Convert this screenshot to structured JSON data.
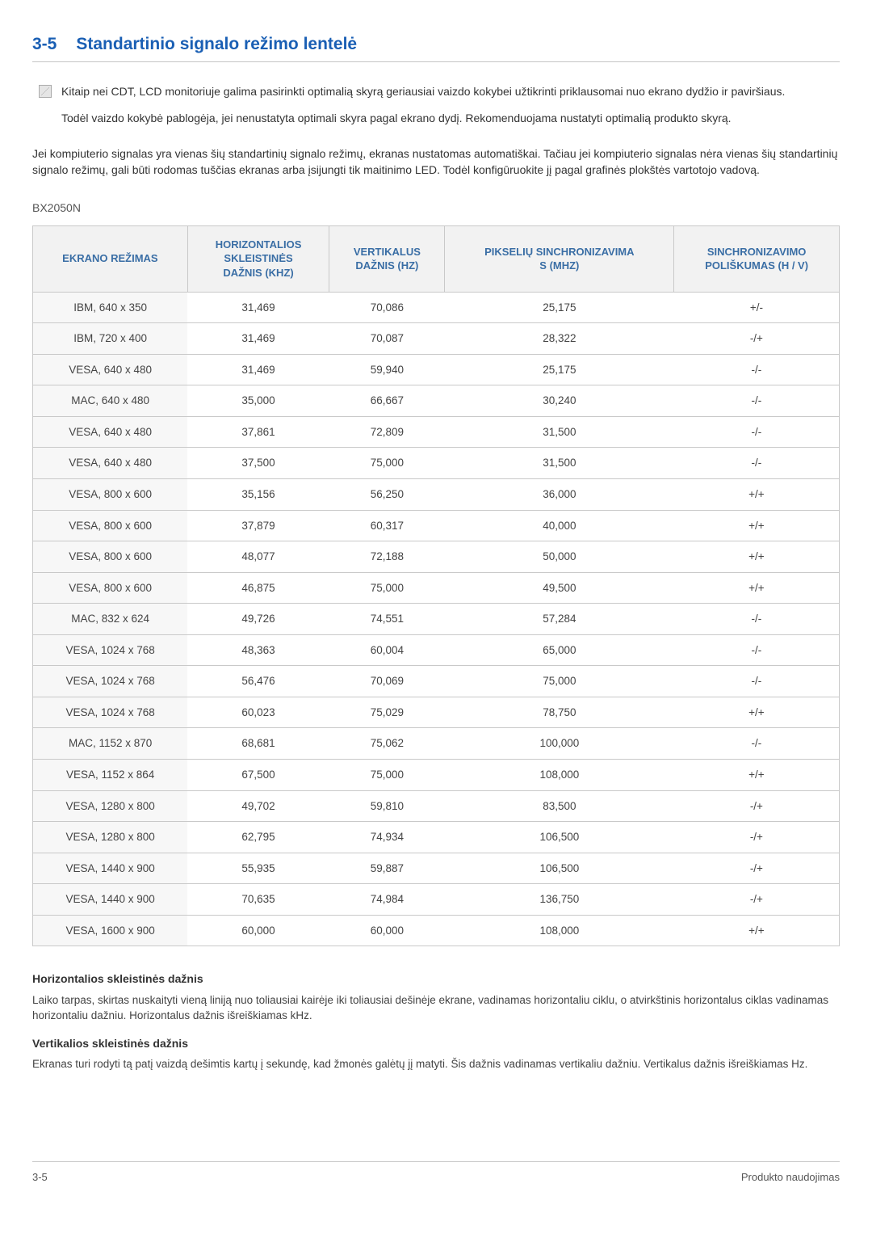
{
  "header": {
    "number": "3-5",
    "title": "Standartinio signalo režimo lentelė"
  },
  "note": {
    "p1": "Kitaip nei CDT, LCD monitoriuje galima pasirinkti optimalią skyrą geriausiai vaizdo kokybei užtikrinti priklausomai nuo ekrano dydžio ir paviršiaus.",
    "p2": "Todėl vaizdo kokybė pablogėja, jei nenustatyta optimali skyra pagal ekrano dydį. Rekomenduojama nustatyti optimalią produkto skyrą."
  },
  "intro": "Jei kompiuterio signalas yra vienas šių standartinių signalo režimų, ekranas nustatomas automatiškai. Tačiau jei kompiuterio signalas nėra vienas šių standartinių signalo režimų, gali būti rodomas tuščias ekranas arba įsijungti tik maitinimo LED. Todėl konfigūruokite jį pagal grafinės plokštės vartotojo vadovą.",
  "model": "BX2050N",
  "table": {
    "columns": [
      "EKRANO REŽIMAS",
      "HORIZONTALIOS SKLEISTINĖS DAŽNIS (KHZ)",
      "VERTIKALUS DAŽNIS (HZ)",
      "PIKSELIŲ SINCHRONIZAVIMAS (MHZ)",
      "SINCHRONIZAVIMO POLIŠKUMAS (H / V)"
    ],
    "col_widths": [
      "20%",
      "20%",
      "20%",
      "20%",
      "20%"
    ],
    "header_bg": "#f2f2f2",
    "header_color": "#3a6ea5",
    "border_color": "#c9c9c9",
    "first_col_bg": "#f7f7f7",
    "rows": [
      [
        "IBM, 640 x 350",
        "31,469",
        "70,086",
        "25,175",
        "+/-"
      ],
      [
        "IBM, 720 x 400",
        "31,469",
        "70,087",
        "28,322",
        "-/+"
      ],
      [
        "VESA, 640 x 480",
        "31,469",
        "59,940",
        "25,175",
        "-/-"
      ],
      [
        "MAC, 640 x 480",
        "35,000",
        "66,667",
        "30,240",
        "-/-"
      ],
      [
        "VESA, 640 x 480",
        "37,861",
        "72,809",
        "31,500",
        "-/-"
      ],
      [
        "VESA, 640 x 480",
        "37,500",
        "75,000",
        "31,500",
        "-/-"
      ],
      [
        "VESA, 800 x 600",
        "35,156",
        "56,250",
        "36,000",
        "+/+"
      ],
      [
        "VESA, 800 x 600",
        "37,879",
        "60,317",
        "40,000",
        "+/+"
      ],
      [
        "VESA, 800 x 600",
        "48,077",
        "72,188",
        "50,000",
        "+/+"
      ],
      [
        "VESA, 800 x 600",
        "46,875",
        "75,000",
        "49,500",
        "+/+"
      ],
      [
        "MAC, 832 x 624",
        "49,726",
        "74,551",
        "57,284",
        "-/-"
      ],
      [
        "VESA, 1024 x 768",
        "48,363",
        "60,004",
        "65,000",
        "-/-"
      ],
      [
        "VESA, 1024 x 768",
        "56,476",
        "70,069",
        "75,000",
        "-/-"
      ],
      [
        "VESA, 1024 x 768",
        "60,023",
        "75,029",
        "78,750",
        "+/+"
      ],
      [
        "MAC, 1152 x 870",
        "68,681",
        "75,062",
        "100,000",
        "-/-"
      ],
      [
        "VESA, 1152 x 864",
        "67,500",
        "75,000",
        "108,000",
        "+/+"
      ],
      [
        "VESA, 1280 x 800",
        "49,702",
        "59,810",
        "83,500",
        "-/+"
      ],
      [
        "VESA, 1280 x 800",
        "62,795",
        "74,934",
        "106,500",
        "-/+"
      ],
      [
        "VESA, 1440 x 900",
        "55,935",
        "59,887",
        "106,500",
        "-/+"
      ],
      [
        "VESA, 1440 x 900",
        "70,635",
        "74,984",
        "136,750",
        "-/+"
      ],
      [
        "VESA, 1600 x 900",
        "60,000",
        "60,000",
        "108,000",
        "+/+"
      ]
    ]
  },
  "definitions": {
    "h1_title": "Horizontalios skleistinės dažnis",
    "h1_text": "Laiko tarpas, skirtas nuskaityti vieną liniją nuo toliausiai kairėje iki toliausiai dešinėje ekrane, vadinamas horizontaliu ciklu, o atvirkštinis horizontalus ciklas vadinamas horizontaliu dažniu. Horizontalus dažnis išreiškiamas kHz.",
    "v1_title": "Vertikalios skleistinės dažnis",
    "v1_text": "Ekranas turi rodyti tą patį vaizdą dešimtis kartų į sekundę, kad žmonės galėtų jį matyti. Šis dažnis vadinamas vertikaliu dažniu. Vertikalus dažnis išreiškiamas Hz."
  },
  "footer": {
    "left": "3-5",
    "right": "Produkto naudojimas"
  }
}
